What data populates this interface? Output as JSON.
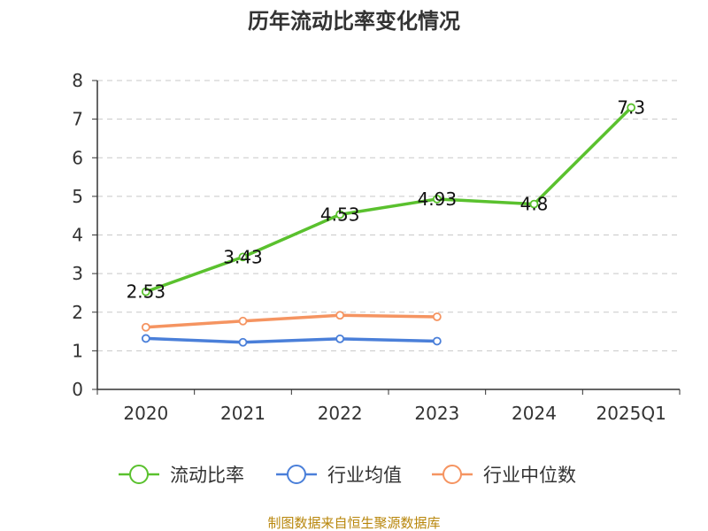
{
  "chart_data": {
    "type": "line",
    "title": "历年流动比率变化情况",
    "categories": [
      "2020",
      "2021",
      "2022",
      "2023",
      "2024",
      "2025Q1"
    ],
    "y_ticks": [
      "0",
      "1",
      "2",
      "3",
      "4",
      "5",
      "6",
      "7",
      "8"
    ],
    "ylim": [
      0,
      8
    ],
    "xlabel": "",
    "ylabel": "",
    "grid": "horizontal-dashed",
    "legend_position": "bottom",
    "series": [
      {
        "name": "流动比率",
        "color": "#5ac12e",
        "values": [
          2.53,
          3.43,
          4.53,
          4.93,
          4.8,
          7.3
        ],
        "labels": [
          "2.53",
          "3.43",
          "4.53",
          "4.93",
          "4.8",
          "7.3"
        ]
      },
      {
        "name": "行业均值",
        "color": "#4a7fd9",
        "values": [
          1.32,
          1.22,
          1.31,
          1.25,
          null,
          null
        ]
      },
      {
        "name": "行业中位数",
        "color": "#f59461",
        "values": [
          1.61,
          1.77,
          1.92,
          1.88,
          null,
          null
        ]
      }
    ]
  },
  "footer": {
    "source": "制图数据来自恒生聚源数据库"
  }
}
